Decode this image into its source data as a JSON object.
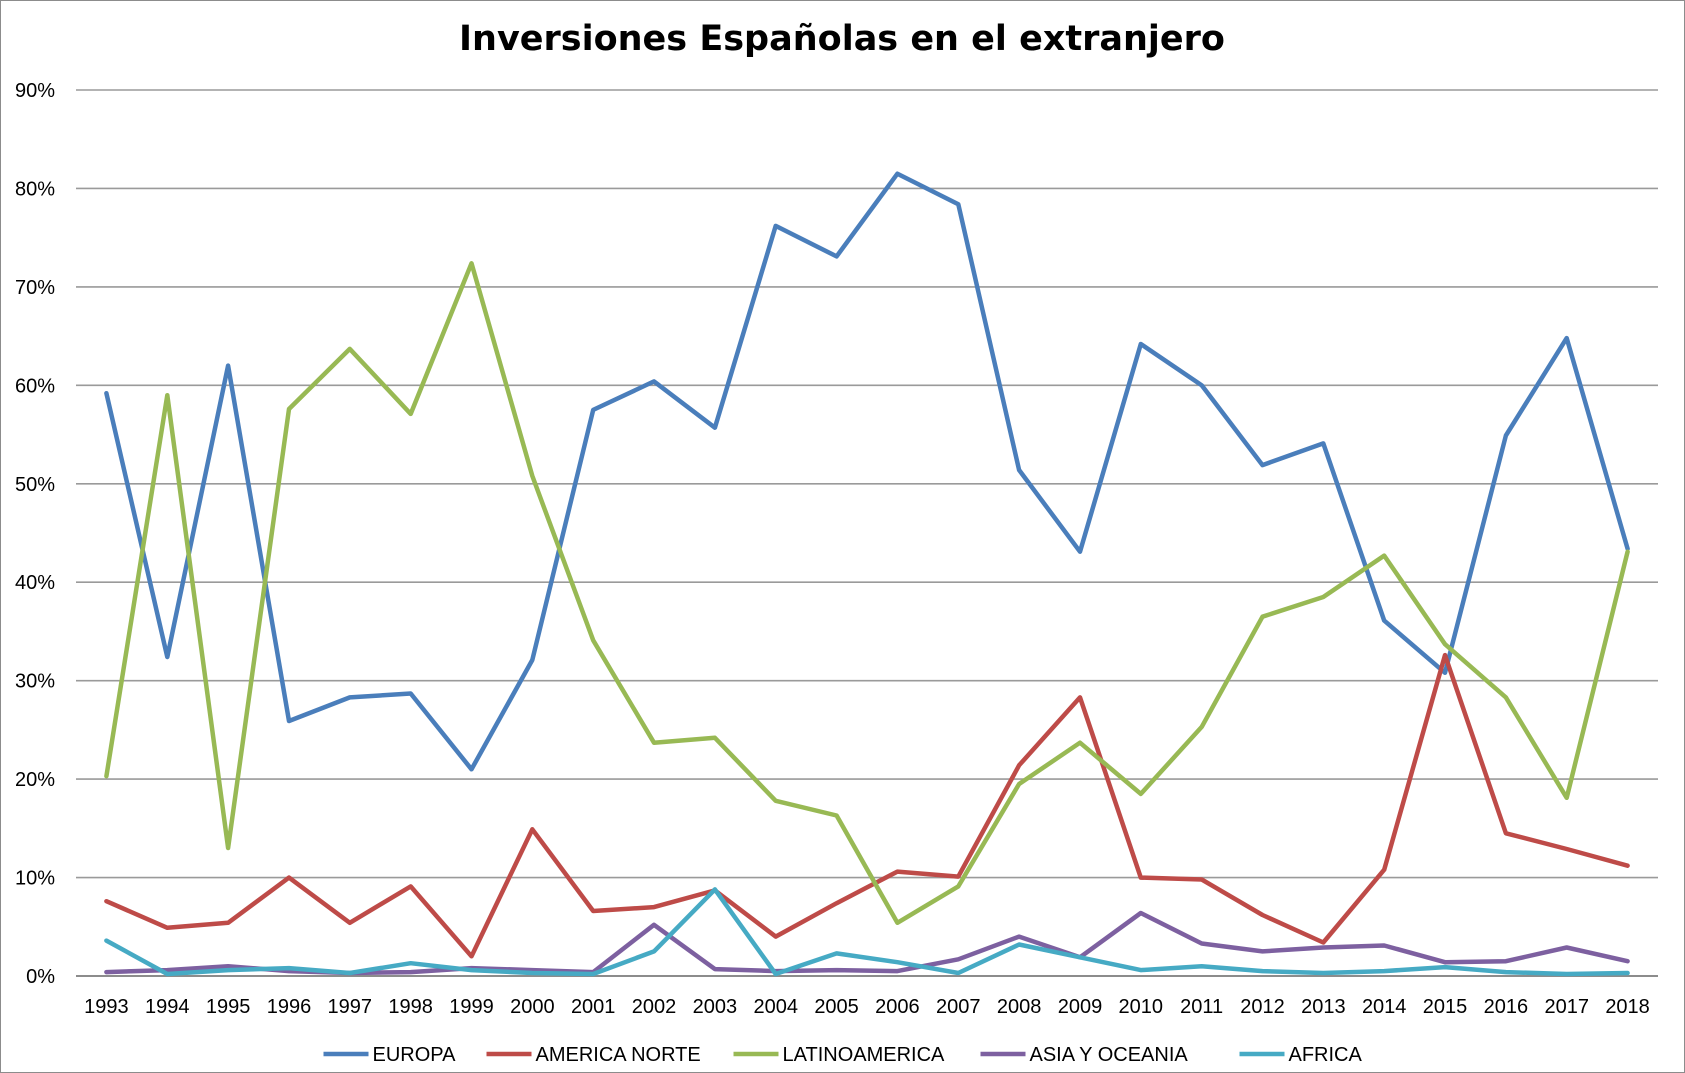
{
  "chart_data": {
    "type": "line",
    "title": "Inversiones Españolas en el extranjero",
    "xlabel": "",
    "ylabel": "",
    "ylim": [
      0,
      90
    ],
    "y_ticks": [
      "0%",
      "10%",
      "20%",
      "30%",
      "40%",
      "50%",
      "60%",
      "70%",
      "80%",
      "90%"
    ],
    "grid": true,
    "legend_position": "bottom",
    "categories": [
      "1993",
      "1994",
      "1995",
      "1996",
      "1997",
      "1998",
      "1999",
      "2000",
      "2001",
      "2002",
      "2003",
      "2004",
      "2005",
      "2006",
      "2007",
      "2008",
      "2009",
      "2010",
      "2011",
      "2012",
      "2013",
      "2014",
      "2015",
      "2016",
      "2017",
      "2018"
    ],
    "series": [
      {
        "name": "EUROPA",
        "color": "#4a7ebb",
        "values": [
          59.2,
          32.4,
          62.0,
          25.9,
          28.3,
          28.7,
          21.0,
          32.1,
          57.5,
          60.4,
          55.7,
          76.2,
          73.1,
          81.5,
          78.4,
          51.4,
          43.1,
          64.2,
          60.0,
          51.9,
          54.1,
          36.1,
          30.8,
          54.9,
          64.8,
          43.4
        ]
      },
      {
        "name": "AMERICA NORTE",
        "color": "#be4b48",
        "values": [
          7.6,
          4.9,
          5.4,
          10.0,
          5.4,
          9.1,
          2.0,
          14.9,
          6.6,
          7.0,
          8.7,
          4.0,
          7.4,
          10.6,
          10.1,
          21.4,
          28.3,
          10.0,
          9.8,
          6.2,
          3.4,
          10.8,
          32.6,
          14.5,
          12.9,
          11.2
        ]
      },
      {
        "name": "LATINOAMERICA",
        "color": "#98b954",
        "values": [
          20.3,
          59.0,
          13.0,
          57.6,
          63.7,
          57.1,
          72.4,
          50.8,
          34.1,
          23.7,
          24.2,
          17.8,
          16.3,
          5.4,
          9.1,
          19.5,
          23.7,
          18.5,
          25.3,
          36.5,
          38.5,
          42.7,
          33.7,
          28.3,
          18.1,
          43.1
        ]
      },
      {
        "name": "ASIA Y OCEANIA",
        "color": "#7d60a0",
        "values": [
          0.4,
          0.6,
          1.0,
          0.5,
          0.3,
          0.4,
          0.8,
          0.6,
          0.4,
          5.2,
          0.7,
          0.5,
          0.6,
          0.5,
          1.7,
          4.0,
          1.9,
          6.4,
          3.3,
          2.5,
          2.9,
          3.1,
          1.4,
          1.5,
          2.9,
          1.5
        ]
      },
      {
        "name": "AFRICA",
        "color": "#46aac4",
        "values": [
          3.6,
          0.2,
          0.6,
          0.8,
          0.3,
          1.3,
          0.6,
          0.3,
          0.2,
          2.5,
          8.8,
          0.2,
          2.3,
          1.4,
          0.3,
          3.2,
          1.9,
          0.6,
          1.0,
          0.5,
          0.3,
          0.5,
          0.9,
          0.4,
          0.2,
          0.3
        ]
      }
    ]
  }
}
